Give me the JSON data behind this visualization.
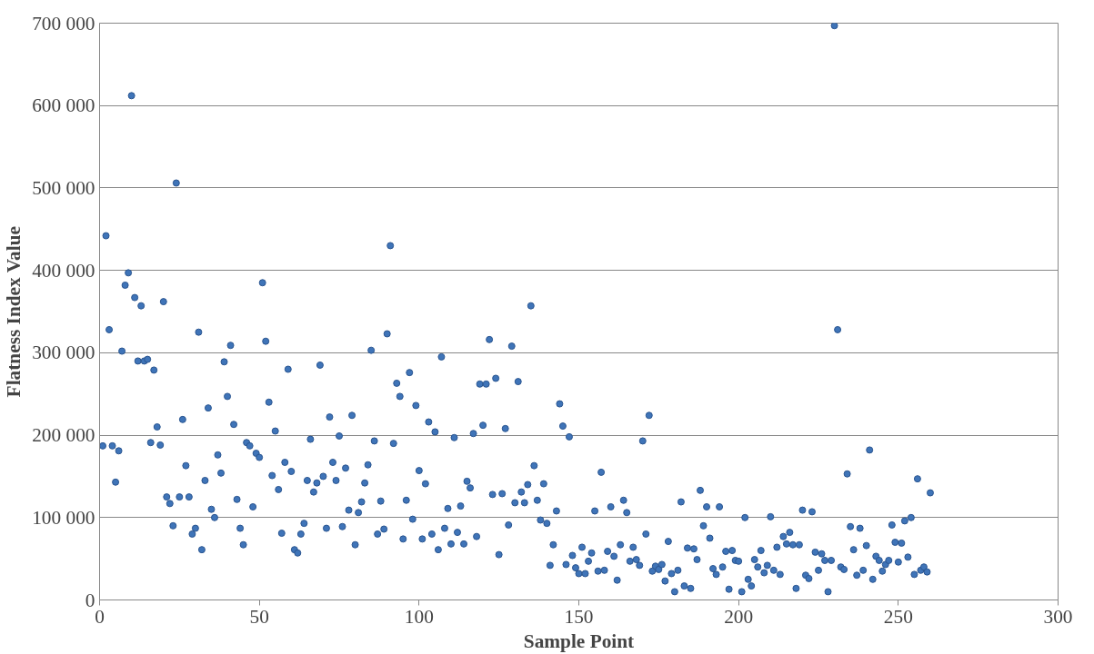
{
  "chart_data": {
    "type": "scatter",
    "xlabel": "Sample Point",
    "ylabel": "Flatness Index Value",
    "x": [
      1,
      2,
      3,
      4,
      5,
      6,
      7,
      8,
      9,
      10,
      11,
      12,
      13,
      14,
      15,
      16,
      17,
      18,
      19,
      20,
      21,
      22,
      23,
      24,
      25,
      26,
      27,
      28,
      29,
      30,
      31,
      32,
      33,
      34,
      35,
      36,
      37,
      38,
      39,
      40,
      41,
      42,
      43,
      44,
      45,
      46,
      47,
      48,
      49,
      50,
      51,
      52,
      53,
      54,
      55,
      56,
      57,
      58,
      59,
      60,
      61,
      62,
      63,
      64,
      65,
      66,
      67,
      68,
      69,
      70,
      71,
      72,
      73,
      74,
      75,
      76,
      77,
      78,
      79,
      80,
      81,
      82,
      83,
      84,
      85,
      86,
      87,
      88,
      89,
      90,
      91,
      92,
      93,
      94,
      95,
      96,
      97,
      98,
      99,
      100,
      101,
      102,
      103,
      104,
      105,
      106,
      107,
      108,
      109,
      110,
      111,
      112,
      113,
      114,
      115,
      116,
      117,
      118,
      119,
      120,
      121,
      122,
      123,
      124,
      125,
      126,
      127,
      128,
      129,
      130,
      131,
      132,
      133,
      134,
      135,
      136,
      137,
      138,
      139,
      140,
      141,
      142,
      143,
      144,
      145,
      146,
      147,
      148,
      149,
      150,
      151,
      152,
      153,
      154,
      155,
      156,
      157,
      158,
      159,
      160,
      161,
      162,
      163,
      164,
      165,
      166,
      167,
      168,
      169,
      170,
      171,
      172,
      173,
      174,
      175,
      176,
      177,
      178,
      179,
      180,
      181,
      182,
      183,
      184,
      185,
      186,
      187,
      188,
      189,
      190,
      191,
      192,
      193,
      194,
      195,
      196,
      197,
      198,
      199,
      200,
      201,
      202,
      203,
      204,
      205,
      206,
      207,
      208,
      209,
      210,
      211,
      212,
      213,
      214,
      215,
      216,
      217,
      218,
      219,
      220,
      221,
      222,
      223,
      224,
      225,
      226,
      227,
      228,
      229,
      230,
      231,
      232,
      233,
      234,
      235,
      236,
      237,
      238,
      239,
      240,
      241,
      242,
      243,
      244,
      245,
      246,
      247,
      248,
      249,
      250,
      251,
      252,
      253,
      254,
      255,
      256,
      257,
      258,
      259,
      260
    ],
    "values": [
      187000,
      442000,
      328000,
      187000,
      143000,
      181000,
      302000,
      382000,
      397000,
      612000,
      367000,
      290000,
      357000,
      290000,
      292000,
      191000,
      279000,
      210000,
      188000,
      362000,
      125000,
      117000,
      90000,
      506000,
      125000,
      219000,
      163000,
      125000,
      80000,
      87000,
      325000,
      61000,
      145000,
      233000,
      110000,
      100000,
      176000,
      154000,
      289000,
      247000,
      309000,
      213000,
      122000,
      87000,
      67000,
      191000,
      187000,
      113000,
      178000,
      173000,
      385000,
      314000,
      240000,
      151000,
      205000,
      134000,
      81000,
      167000,
      280000,
      156000,
      61000,
      57000,
      80000,
      93000,
      145000,
      195000,
      131000,
      142000,
      285000,
      150000,
      87000,
      222000,
      167000,
      145000,
      199000,
      89000,
      160000,
      109000,
      224000,
      67000,
      106000,
      119000,
      142000,
      164000,
      303000,
      193000,
      80000,
      120000,
      86000,
      323000,
      430000,
      190000,
      263000,
      247000,
      74000,
      121000,
      276000,
      98000,
      236000,
      157000,
      74000,
      141000,
      216000,
      80000,
      204000,
      61000,
      295000,
      87000,
      111000,
      68000,
      197000,
      82000,
      114000,
      68000,
      144000,
      136000,
      202000,
      77000,
      262000,
      212000,
      262000,
      316000,
      128000,
      269000,
      55000,
      129000,
      208000,
      91000,
      308000,
      118000,
      265000,
      131000,
      118000,
      140000,
      357000,
      163000,
      121000,
      97000,
      141000,
      93000,
      42000,
      67000,
      108000,
      238000,
      211000,
      43000,
      198000,
      54000,
      39000,
      32000,
      64000,
      32000,
      47000,
      57000,
      108000,
      35000,
      155000,
      36000,
      59000,
      113000,
      53000,
      24000,
      67000,
      121000,
      106000,
      47000,
      64000,
      49000,
      42000,
      193000,
      80000,
      224000,
      35000,
      41000,
      37000,
      43000,
      23000,
      71000,
      32000,
      10000,
      36000,
      119000,
      17000,
      63000,
      14000,
      62000,
      49000,
      133000,
      90000,
      113000,
      75000,
      38000,
      31000,
      113000,
      40000,
      59000,
      13000,
      60000,
      48000,
      47000,
      10000,
      100000,
      25000,
      17000,
      49000,
      40000,
      60000,
      33000,
      42000,
      101000,
      36000,
      64000,
      31000,
      77000,
      68000,
      82000,
      67000,
      14000,
      67000,
      109000,
      30000,
      26000,
      107000,
      58000,
      36000,
      56000,
      48000,
      10000,
      48000,
      697000,
      328000,
      40000,
      37000,
      153000,
      89000,
      61000,
      30000,
      87000,
      36000,
      66000,
      182000,
      25000,
      53000,
      48000,
      35000,
      43000,
      48000,
      91000,
      70000,
      46000,
      69000,
      96000,
      52000,
      100000,
      31000,
      147000,
      36000,
      40000,
      34000,
      130000
    ],
    "color": "#3f74b8",
    "marker": "circle",
    "xlim": [
      0,
      300
    ],
    "xticks": [
      0,
      50,
      100,
      150,
      200,
      250,
      300
    ],
    "ylim": [
      0,
      700000
    ],
    "yticks": [
      {
        "value": 0,
        "label": "0"
      },
      {
        "value": 100000,
        "label": "100 000"
      },
      {
        "value": 200000,
        "label": "200 000"
      },
      {
        "value": 300000,
        "label": "300 000"
      },
      {
        "value": 400000,
        "label": "400 000"
      },
      {
        "value": 500000,
        "label": "500 000"
      },
      {
        "value": 600000,
        "label": "600 000"
      },
      {
        "value": 700000,
        "label": "700 000"
      }
    ],
    "grid": "y",
    "legend": false
  }
}
